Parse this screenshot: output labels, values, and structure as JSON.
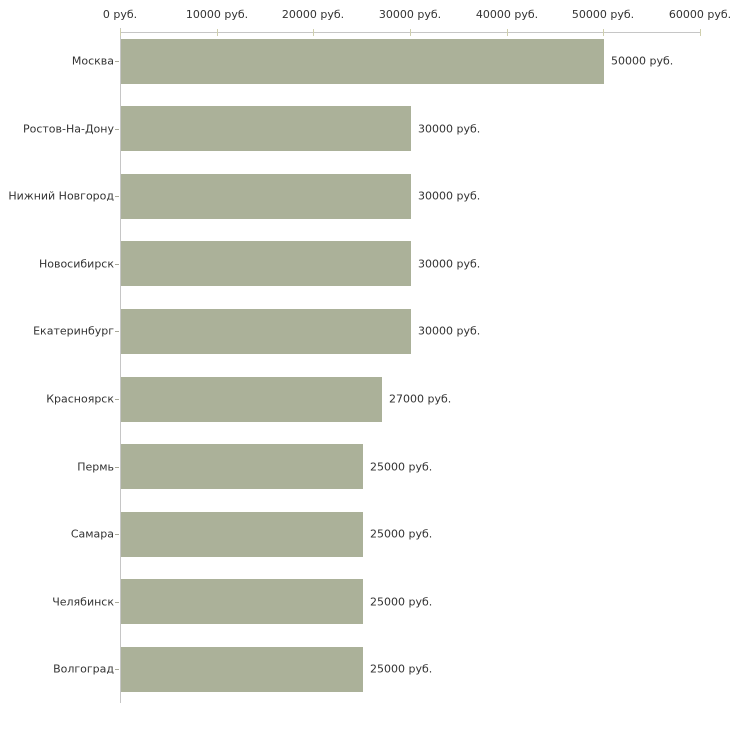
{
  "chart_data": {
    "type": "bar",
    "orientation": "horizontal",
    "title": "",
    "xlabel": "",
    "ylabel": "",
    "unit": "руб.",
    "categories": [
      "Москва",
      "Ростов-На-Дону",
      "Нижний Новгород",
      "Новосибирск",
      "Екатеринбург",
      "Красноярск",
      "Пермь",
      "Самара",
      "Челябинск",
      "Волгоград"
    ],
    "values": [
      50000,
      30000,
      30000,
      30000,
      30000,
      27000,
      25000,
      25000,
      25000,
      25000
    ],
    "value_labels": [
      "50000 руб.",
      "30000 руб.",
      "30000 руб.",
      "30000 руб.",
      "30000 руб.",
      "27000 руб.",
      "25000 руб.",
      "25000 руб.",
      "25000 руб.",
      "25000 руб."
    ],
    "x_ticks": [
      0,
      10000,
      20000,
      30000,
      40000,
      50000,
      60000
    ],
    "x_tick_labels": [
      "0 руб.",
      "10000 руб.",
      "20000 руб.",
      "30000 руб.",
      "40000 руб.",
      "50000 руб.",
      "60000 руб."
    ],
    "xlim": [
      0,
      60000
    ],
    "grid": false,
    "legend": false,
    "colors": {
      "bar": "#abb199",
      "axis": "#c6c6c6",
      "axis_tick": "#cfcfad",
      "category_tick": "#a9a99a",
      "text": "#333333",
      "background": "#ffffff"
    }
  }
}
